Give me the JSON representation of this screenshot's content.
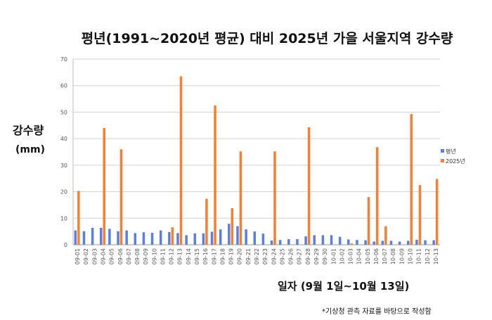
{
  "chart_data": {
    "type": "bar",
    "title": "평년(1991~2020년 평균) 대비 2025년 가을 서울지역 강수량",
    "ylabel": "강수량",
    "ylabel_unit": "(mm)",
    "xlabel": "일자 (9월 1일~10월 13일)",
    "note": "*기상청 관측 자료를 바탕으로 작성함",
    "ylim": [
      0,
      70
    ],
    "yticks": [
      0,
      10,
      20,
      30,
      40,
      50,
      60,
      70
    ],
    "grid": true,
    "legend": "right",
    "categories": [
      "09-01",
      "09-02",
      "09-03",
      "09-04",
      "09-05",
      "09-06",
      "09-07",
      "09-08",
      "09-09",
      "09-10",
      "09-11",
      "09-12",
      "09-13",
      "09-14",
      "09-15",
      "09-16",
      "09-17",
      "09-18",
      "09-19",
      "09-20",
      "09-21",
      "09-22",
      "09-23",
      "09-24",
      "09-25",
      "09-26",
      "09-27",
      "09-28",
      "09-29",
      "09-30",
      "10-01",
      "10-02",
      "10-03",
      "10-04",
      "10-05",
      "10-06",
      "10-07",
      "10-08",
      "10-09",
      "10-10",
      "10-11",
      "10-12",
      "10-13"
    ],
    "series": [
      {
        "name": "평년",
        "color": "#5b7fe0",
        "values": [
          5.4,
          5.1,
          6.4,
          6.4,
          6.0,
          5.1,
          5.4,
          4.4,
          4.7,
          4.5,
          5.4,
          4.8,
          4.4,
          3.6,
          4.3,
          4.3,
          4.9,
          5.8,
          7.9,
          7.0,
          5.8,
          5.0,
          4.2,
          1.6,
          1.8,
          2.1,
          2.1,
          3.2,
          3.6,
          3.6,
          3.6,
          3.0,
          2.0,
          1.8,
          1.7,
          1.2,
          1.5,
          1.5,
          1.2,
          1.5,
          1.9,
          1.7,
          1.7
        ]
      },
      {
        "name": "2025년",
        "color": "#f77f2f",
        "values": [
          20.3,
          0,
          0,
          44.0,
          0,
          36.0,
          0.1,
          0,
          0,
          0,
          0,
          6.6,
          63.5,
          0,
          0,
          17.3,
          52.5,
          0,
          13.8,
          35.2,
          0,
          0,
          0,
          35.2,
          0.1,
          0,
          0,
          44.3,
          0,
          0,
          0,
          0,
          0.5,
          0,
          18.0,
          36.8,
          7.0,
          0,
          0,
          49.3,
          22.5,
          0,
          24.8
        ]
      }
    ]
  }
}
